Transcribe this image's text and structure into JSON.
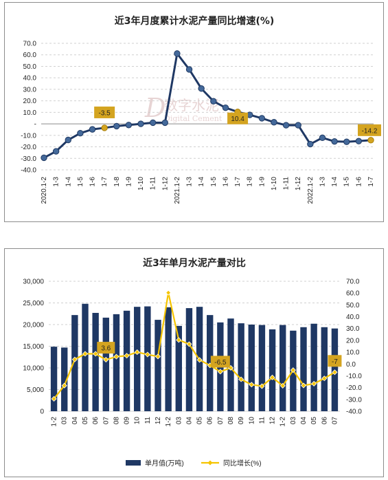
{
  "chart_data": [
    {
      "type": "line",
      "title": "近3年月度累计水泥产量同比增速(%)",
      "categories": [
        "2020.1-2",
        "1-3",
        "1-4",
        "1-5",
        "1-6",
        "1-7",
        "1-8",
        "1-9",
        "1-10",
        "1-11",
        "1-12",
        "2021.1-2",
        "1-3",
        "1-4",
        "1-5",
        "1-6",
        "1-7",
        "1-8",
        "1-9",
        "1-10",
        "1-11",
        "1-12",
        "2022.1-2",
        "1-3",
        "1-4",
        "1-5",
        "1-6",
        "1-7"
      ],
      "series": [
        {
          "values": [
            -29.5,
            -23.9,
            -14.0,
            -8.1,
            -4.8,
            -3.5,
            -2.0,
            -1.0,
            0.0,
            1.0,
            1.0,
            61.1,
            47.3,
            30.7,
            19.7,
            14.0,
            10.4,
            7.8,
            4.9,
            1.4,
            -1.2,
            -1.2,
            -17.6,
            -12.1,
            -15.3,
            -15.6,
            -15.0,
            -14.2
          ]
        }
      ],
      "ylim": [
        -40,
        70
      ],
      "yticks": [
        "70.0",
        "60.0",
        "50.0",
        "40.0",
        "30.0",
        "20.0",
        "10.0",
        "-",
        "-10.0",
        "-20.0",
        "-30.0",
        "-40.0"
      ],
      "annotations": [
        {
          "index": 5,
          "text": "-3.5"
        },
        {
          "index": 16,
          "text": "10.4"
        },
        {
          "index": 27,
          "text": "-14.2"
        }
      ],
      "grid": true,
      "colors": {
        "line": "#1f3864",
        "marker": "#44699a",
        "highlight": "#d4a420",
        "label_bg": "#d4a420"
      }
    },
    {
      "type": "bar",
      "title": "近3年单月水泥产量对比",
      "categories": [
        "1-2",
        "03",
        "04",
        "05",
        "06",
        "07",
        "08",
        "09",
        "10",
        "11",
        "12",
        "1-2",
        "03",
        "04",
        "05",
        "06",
        "07",
        "08",
        "09",
        "10",
        "11",
        "12",
        "1-2",
        "03",
        "04",
        "05",
        "06",
        "07"
      ],
      "series": [
        {
          "name": "单月值(万吨)",
          "type": "bar",
          "axis": "left",
          "values": [
            14900,
            14700,
            22200,
            24800,
            22700,
            21600,
            22400,
            23200,
            24100,
            24200,
            21100,
            24000,
            19700,
            23800,
            24100,
            22200,
            20500,
            21400,
            20300,
            20000,
            19900,
            18900,
            19900,
            18600,
            19400,
            20200,
            19400,
            19100
          ]
        },
        {
          "name": "同比增长(%)",
          "type": "line",
          "axis": "right",
          "values": [
            -29.5,
            -18.3,
            3.8,
            8.6,
            8.6,
            3.6,
            6.2,
            7.0,
            10.0,
            8.0,
            6.3,
            60.3,
            20.3,
            16.8,
            3.4,
            -1.2,
            -6.5,
            -3.3,
            -13.0,
            -17.5,
            -18.8,
            -11.4,
            -18.4,
            -5.2,
            -18.2,
            -16.7,
            -12.2,
            -7.0
          ]
        }
      ],
      "ylim_left": [
        0,
        30000
      ],
      "yticks_left": [
        "30,000",
        "25,000",
        "20,000",
        "15,000",
        "10,000",
        "5,000",
        "0"
      ],
      "ylim_right": [
        -40,
        70
      ],
      "yticks_right": [
        "70.0",
        "60.0",
        "50.0",
        "40.0",
        "30.0",
        "20.0",
        "10.0",
        "0.0",
        "-10.0",
        "-20.0",
        "-30.0",
        "-40.0"
      ],
      "annotations": [
        {
          "index": 5,
          "text": "3.6"
        },
        {
          "index": 16,
          "text": "-6.5"
        },
        {
          "index": 27,
          "text": "-7"
        }
      ],
      "legend": {
        "position": "bottom"
      },
      "grid": true,
      "colors": {
        "bar": "#1f3864",
        "line": "#f5c400",
        "label_bg": "#d4a420"
      }
    }
  ],
  "watermark": {
    "letter": "D",
    "text1": "数字水泥",
    "text2": "Digital Cement"
  }
}
